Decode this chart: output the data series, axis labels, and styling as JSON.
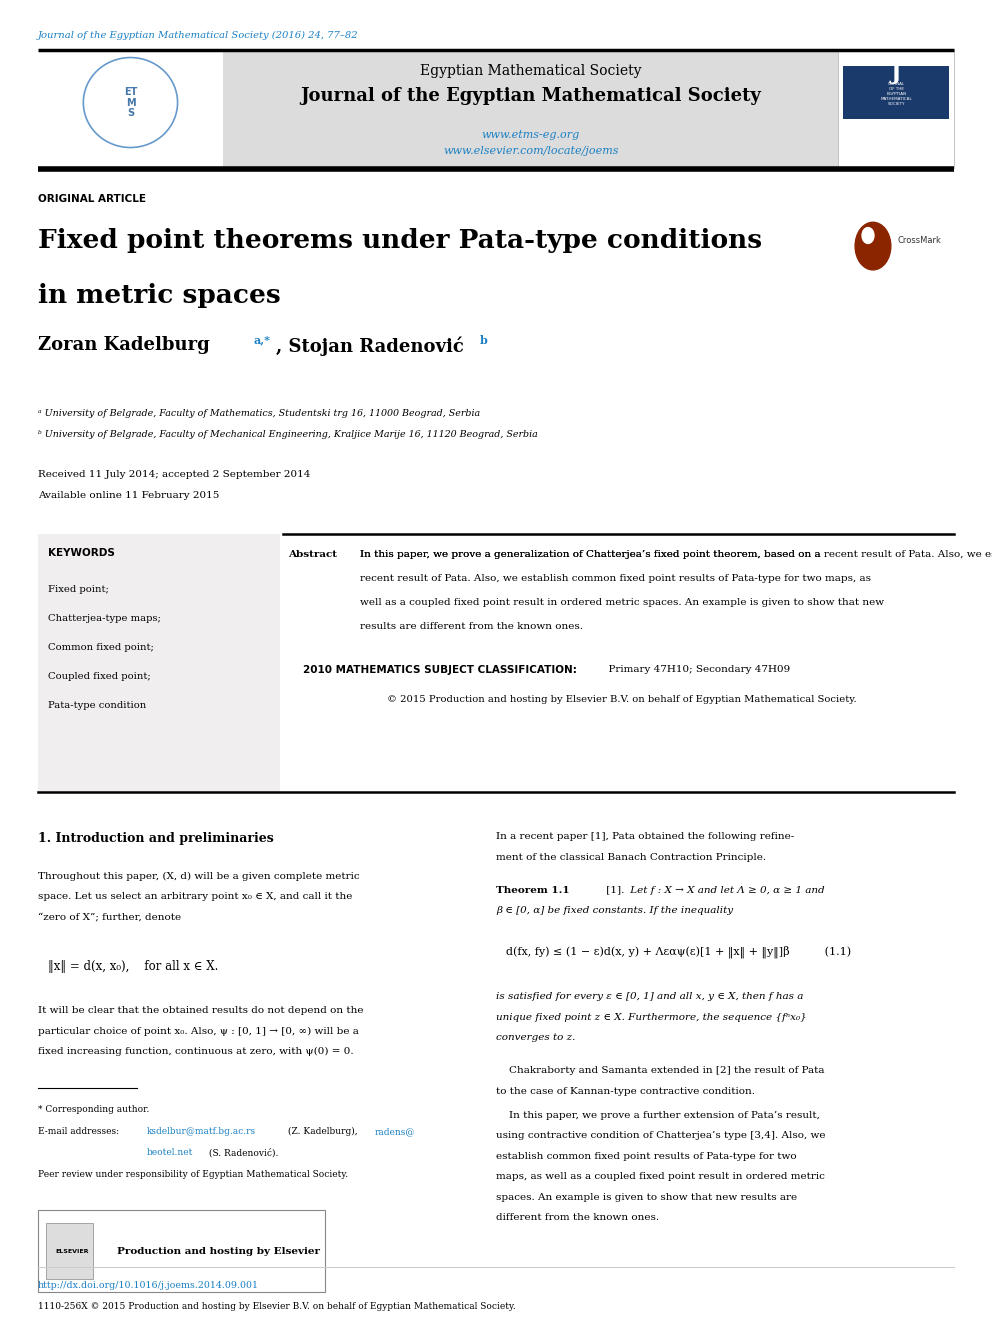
{
  "bg_color": "#ffffff",
  "page_width": 9.92,
  "page_height": 13.23,
  "top_link_text": "Journal of the Egyptian Mathematical Society (2016) 24, 77–82",
  "top_link_color": "#1a80c4",
  "header_society": "Egyptian Mathematical Society",
  "header_journal": "Journal of the Egyptian Mathematical Society",
  "header_url1": "www.etms-eg.org",
  "header_url2": "www.elsevier.com/locate/joems",
  "header_url_color": "#1a80c4",
  "section_label": "ORIGINAL ARTICLE",
  "article_title_line1": "Fixed point theorems under Pata-type conditions",
  "article_title_line2": "in metric spaces",
  "authors": "Zoran Kadelburg ",
  "authors_super": "a,*",
  "authors2": ", Stojan Radenović ",
  "authors2_super": "b",
  "affil_a": "ᵃ University of Belgrade, Faculty of Mathematics, Studentski trg 16, 11000 Beograd, Serbia",
  "affil_b": "ᵇ University of Belgrade, Faculty of Mechanical Engineering, Kraljice Marije 16, 11120 Beograd, Serbia",
  "received": "Received 11 July 2014; accepted 2 September 2014",
  "available": "Available online 11 February 2015",
  "keywords_title": "KEYWORDS",
  "keywords": [
    "Fixed point;",
    "Chatterjea-type maps;",
    "Common fixed point;",
    "Coupled fixed point;",
    "Pata-type condition"
  ],
  "abstract_label": "Abstract",
  "abstract_text": "In this paper, we prove a generalization of Chatterjea’s fixed point theorem, based on a recent result of Pata. Also, we establish common fixed point results of Pata-type for two maps, as well as a coupled fixed point result in ordered metric spaces. An example is given to show that new results are different from the known ones.",
  "classification_bold": "2010 MATHEMATICS SUBJECT CLASSIFICATION:",
  "classification_text": "  Primary 47H10; Secondary 47H09",
  "copyright_abstract": "© 2015 Production and hosting by Elsevier B.V. on behalf of Egyptian Mathematical Society.",
  "intro_heading": "1. Introduction and preliminaries",
  "intro_para1_line1": "Throughout this paper, (X, d) will be a given complete metric",
  "intro_para1_line2": "space. Let us select an arbitrary point x₀ ∈ X, and call it the",
  "intro_para1_line3": "“zero of X”; further, denote",
  "intro_formula": "‖x‖ = d(x, x₀),    for all x ∈ X.",
  "intro_para2_line1": "It will be clear that the obtained results do not depend on the",
  "intro_para2_line2": "particular choice of point x₀. Also, ψ : [0, 1] → [0, ∞) will be a",
  "intro_para2_line3": "fixed increasing function, continuous at zero, with ψ(0) = 0.",
  "footnote_star": "* Corresponding author.",
  "footnote_email_label": "E-mail addresses: ",
  "footnote_email1": "ksdelbur@matf.bg.ac.rs",
  "footnote_email1_after": " (Z. Kadelburg), ",
  "footnote_email2": "radens@",
  "footnote_email2_line2": "beotel.net",
  "footnote_email2_after": " (S. Radenović).",
  "footnote_peer": "Peer review under responsibility of Egyptian Mathematical Society.",
  "right_col_intro_line1": "In a recent paper [1], Pata obtained the following refine-",
  "right_col_intro_line2": "ment of the classical Banach Contraction Principle.",
  "theorem_heading": "Theorem 1.1",
  "theorem_ref": " [1].",
  "theorem_italic": " Let f : X → X and let Λ ≥ 0, α ≥ 1 and",
  "theorem_line2": "β ∈ [0, α] be fixed constants. If the inequality",
  "theorem_formula": "d(fx, fy) ≤ (1 − ε)d(x, y) + Λεαψ(ε)[1 + ‖x‖ + ‖y‖]β          (1.1)",
  "theorem_italic2_line1": "is satisfied for every ε ∈ [0, 1] and all x, y ∈ X, then f has a",
  "theorem_italic2_line2": "unique fixed point z ∈ X. Furthermore, the sequence {fⁿx₀}",
  "theorem_italic2_line3": "converges to z.",
  "right_para2_line1": "    Chakraborty and Samanta extended in [2] the result of Pata",
  "right_para2_line2": "to the case of Kannan-type contractive condition.",
  "right_para3_line1": "    In this paper, we prove a further extension of Pata’s result,",
  "right_para3_line2": "using contractive condition of Chatterjea’s type [3,4]. Also, we",
  "right_para3_line3": "establish common fixed point results of Pata-type for two",
  "right_para3_line4": "maps, as well as a coupled fixed point result in ordered metric",
  "right_para3_line5": "spaces. An example is given to show that new results are",
  "right_para3_line6": "different from the known ones.",
  "doi_text": "http://dx.doi.org/10.1016/j.joems.2014.09.001",
  "doi_color": "#1a80c4",
  "copyright_bottom": "1110-256X © 2015 Production and hosting by Elsevier B.V. on behalf of Egyptian Mathematical Society.",
  "elsevier_logo_text": "Production and hosting by Elsevier",
  "crossmark_text": "CrossMark",
  "lm": 0.038,
  "rm": 0.962,
  "col_split": 0.495
}
